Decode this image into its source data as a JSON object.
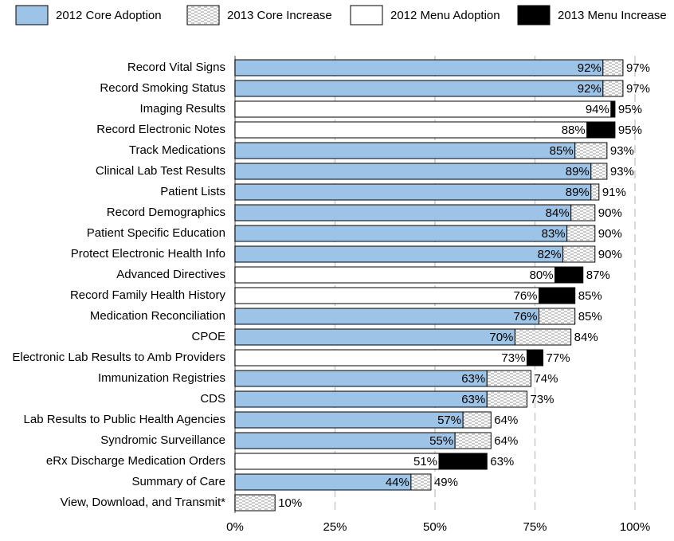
{
  "chart_data": {
    "type": "stacked-barh",
    "categories": [
      "Record Vital Signs",
      "Record Smoking Status",
      "Imaging Results",
      "Record Electronic Notes",
      "Track Medications",
      "Clinical Lab Test Results",
      "Patient Lists",
      "Record Demographics",
      "Patient Specific Education",
      "Protect Electronic Health Info",
      "Advanced Directives",
      "Record Family Health History",
      "Medication Reconciliation",
      "CPOE",
      "Electronic Lab Results to Amb Providers",
      "Immunization Registries",
      "CDS",
      "Lab Results to Public Health Agencies",
      "Syndromic Surveillance",
      "eRx Discharge Medication Orders",
      "Summary of Care",
      "View, Download, and Transmit*"
    ],
    "series": [
      {
        "name": "2012 Core Adoption",
        "color": "#9dc3e6",
        "hatch": false,
        "values": [
          92,
          92,
          null,
          null,
          85,
          89,
          89,
          84,
          83,
          82,
          null,
          null,
          76,
          70,
          null,
          63,
          63,
          57,
          55,
          null,
          44,
          null
        ],
        "value_labels": [
          "92%",
          "92%",
          null,
          null,
          "85%",
          "89%",
          "89%",
          "84%",
          "83%",
          "82%",
          null,
          null,
          "76%",
          "70%",
          null,
          "63%",
          "63%",
          "57%",
          "55%",
          null,
          "44%",
          null
        ]
      },
      {
        "name": "2013 Core Increase",
        "color": "#ffffff",
        "hatch": true,
        "values": [
          5,
          5,
          null,
          null,
          8,
          4,
          2,
          6,
          7,
          8,
          null,
          null,
          9,
          14,
          null,
          11,
          10,
          7,
          9,
          null,
          5,
          10
        ]
      },
      {
        "name": "2012 Menu Adoption",
        "color": "#ffffff",
        "hatch": false,
        "values": [
          null,
          null,
          94,
          88,
          null,
          null,
          null,
          null,
          null,
          null,
          80,
          76,
          null,
          null,
          73,
          null,
          null,
          null,
          null,
          51,
          null,
          null
        ],
        "value_labels": [
          null,
          null,
          "94%",
          "88%",
          null,
          null,
          null,
          null,
          null,
          null,
          "80%",
          "76%",
          null,
          null,
          "73%",
          null,
          null,
          null,
          null,
          "51%",
          null,
          null
        ]
      },
      {
        "name": "2013 Menu Increase",
        "color": "#000000",
        "hatch": false,
        "values": [
          null,
          null,
          1,
          7,
          null,
          null,
          null,
          null,
          null,
          null,
          7,
          9,
          null,
          null,
          4,
          null,
          null,
          null,
          null,
          12,
          null,
          null
        ]
      }
    ],
    "totals": [
      97,
      97,
      95,
      95,
      93,
      93,
      91,
      90,
      90,
      90,
      87,
      85,
      85,
      84,
      77,
      74,
      73,
      64,
      64,
      63,
      49,
      10
    ],
    "total_labels": [
      "97%",
      "97%",
      "95%",
      "95%",
      "93%",
      "93%",
      "91%",
      "90%",
      "90%",
      "90%",
      "87%",
      "85%",
      "85%",
      "84%",
      "77%",
      "74%",
      "73%",
      "64%",
      "64%",
      "63%",
      "49%",
      "10%"
    ],
    "xlim": [
      0,
      100
    ],
    "xticks": [
      {
        "value": 0,
        "label": "0%"
      },
      {
        "value": 25,
        "label": "25%"
      },
      {
        "value": 50,
        "label": "50%"
      },
      {
        "value": 75,
        "label": "75%"
      },
      {
        "value": 100,
        "label": "100%"
      }
    ],
    "grid": true
  }
}
